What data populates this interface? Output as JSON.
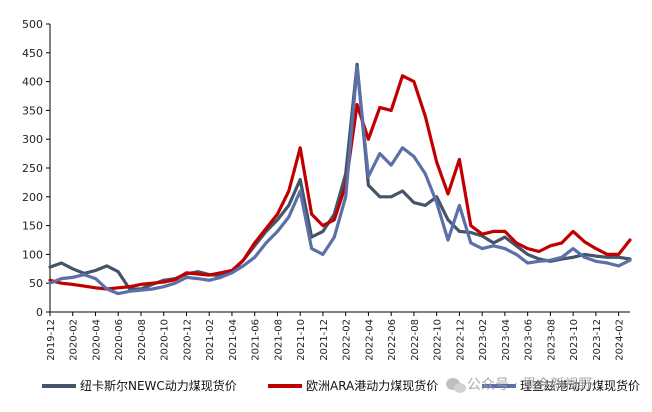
{
  "chart_data": {
    "type": "line",
    "title": "",
    "xlabel": "",
    "ylabel": "",
    "ylim": [
      0,
      500
    ],
    "yticks": [
      "0",
      "50",
      "100",
      "150",
      "200",
      "250",
      "300",
      "350",
      "400",
      "450",
      "500"
    ],
    "x_start": "2019-12",
    "x_end": "2024-03",
    "x_ticks": [
      "2019-12",
      "2020-02",
      "2020-04",
      "2020-06",
      "2020-08",
      "2020-10",
      "2020-12",
      "2021-02",
      "2021-04",
      "2021-06",
      "2021-08",
      "2021-10",
      "2021-12",
      "2022-02",
      "2022-04",
      "2022-06",
      "2022-08",
      "2022-10",
      "2022-12",
      "2023-02",
      "2023-04",
      "2023-06",
      "2023-08",
      "2023-10",
      "2023-12",
      "2024-02"
    ],
    "legend_position": "bottom",
    "series": [
      {
        "name": "纽卡斯尔NEWC动力煤现货价",
        "color": "#44546a",
        "points": [
          [
            "2019-12",
            78
          ],
          [
            "2020-01",
            85
          ],
          [
            "2020-02",
            75
          ],
          [
            "2020-03",
            67
          ],
          [
            "2020-04",
            72
          ],
          [
            "2020-05",
            80
          ],
          [
            "2020-06",
            70
          ],
          [
            "2020-07",
            40
          ],
          [
            "2020-08",
            40
          ],
          [
            "2020-09",
            48
          ],
          [
            "2020-10",
            55
          ],
          [
            "2020-11",
            58
          ],
          [
            "2020-12",
            66
          ],
          [
            "2021-01",
            70
          ],
          [
            "2021-02",
            65
          ],
          [
            "2021-03",
            63
          ],
          [
            "2021-04",
            70
          ],
          [
            "2021-05",
            90
          ],
          [
            "2021-06",
            115
          ],
          [
            "2021-07",
            140
          ],
          [
            "2021-08",
            160
          ],
          [
            "2021-09",
            185
          ],
          [
            "2021-10",
            230
          ],
          [
            "2021-11",
            130
          ],
          [
            "2021-12",
            140
          ],
          [
            "2022-01",
            170
          ],
          [
            "2022-02",
            240
          ],
          [
            "2022-03",
            430
          ],
          [
            "2022-04",
            220
          ],
          [
            "2022-05",
            200
          ],
          [
            "2022-06",
            200
          ],
          [
            "2022-07",
            210
          ],
          [
            "2022-08",
            190
          ],
          [
            "2022-09",
            185
          ],
          [
            "2022-10",
            200
          ],
          [
            "2022-11",
            160
          ],
          [
            "2022-12",
            140
          ],
          [
            "2023-01",
            138
          ],
          [
            "2023-02",
            132
          ],
          [
            "2023-03",
            120
          ],
          [
            "2023-04",
            130
          ],
          [
            "2023-05",
            115
          ],
          [
            "2023-06",
            100
          ],
          [
            "2023-07",
            92
          ],
          [
            "2023-08",
            88
          ],
          [
            "2023-09",
            92
          ],
          [
            "2023-10",
            95
          ],
          [
            "2023-11",
            100
          ],
          [
            "2023-12",
            97
          ],
          [
            "2024-01",
            95
          ],
          [
            "2024-02",
            95
          ],
          [
            "2024-03",
            92
          ]
        ]
      },
      {
        "name": "欧洲ARA港动力煤现货价",
        "color": "#c00000",
        "points": [
          [
            "2019-12",
            55
          ],
          [
            "2020-01",
            50
          ],
          [
            "2020-02",
            48
          ],
          [
            "2020-03",
            45
          ],
          [
            "2020-04",
            42
          ],
          [
            "2020-05",
            40
          ],
          [
            "2020-06",
            42
          ],
          [
            "2020-07",
            44
          ],
          [
            "2020-08",
            48
          ],
          [
            "2020-09",
            50
          ],
          [
            "2020-10",
            52
          ],
          [
            "2020-11",
            56
          ],
          [
            "2020-12",
            68
          ],
          [
            "2021-01",
            66
          ],
          [
            "2021-02",
            64
          ],
          [
            "2021-03",
            68
          ],
          [
            "2021-04",
            72
          ],
          [
            "2021-05",
            90
          ],
          [
            "2021-06",
            120
          ],
          [
            "2021-07",
            145
          ],
          [
            "2021-08",
            170
          ],
          [
            "2021-09",
            210
          ],
          [
            "2021-10",
            285
          ],
          [
            "2021-11",
            170
          ],
          [
            "2021-12",
            150
          ],
          [
            "2022-01",
            160
          ],
          [
            "2022-02",
            220
          ],
          [
            "2022-03",
            360
          ],
          [
            "2022-04",
            300
          ],
          [
            "2022-05",
            355
          ],
          [
            "2022-06",
            350
          ],
          [
            "2022-07",
            410
          ],
          [
            "2022-08",
            400
          ],
          [
            "2022-09",
            340
          ],
          [
            "2022-10",
            260
          ],
          [
            "2022-11",
            205
          ],
          [
            "2022-12",
            265
          ],
          [
            "2023-01",
            150
          ],
          [
            "2023-02",
            135
          ],
          [
            "2023-03",
            140
          ],
          [
            "2023-04",
            140
          ],
          [
            "2023-05",
            120
          ],
          [
            "2023-06",
            110
          ],
          [
            "2023-07",
            105
          ],
          [
            "2023-08",
            115
          ],
          [
            "2023-09",
            120
          ],
          [
            "2023-10",
            140
          ],
          [
            "2023-11",
            122
          ],
          [
            "2023-12",
            110
          ],
          [
            "2024-01",
            100
          ],
          [
            "2024-02",
            100
          ],
          [
            "2024-03",
            125
          ]
        ]
      },
      {
        "name": "理查兹港动力煤现货价",
        "color": "#5b6fa8",
        "points": [
          [
            "2019-12",
            50
          ],
          [
            "2020-01",
            58
          ],
          [
            "2020-02",
            60
          ],
          [
            "2020-03",
            65
          ],
          [
            "2020-04",
            58
          ],
          [
            "2020-05",
            40
          ],
          [
            "2020-06",
            32
          ],
          [
            "2020-07",
            36
          ],
          [
            "2020-08",
            38
          ],
          [
            "2020-09",
            40
          ],
          [
            "2020-10",
            44
          ],
          [
            "2020-11",
            50
          ],
          [
            "2020-12",
            60
          ],
          [
            "2021-01",
            58
          ],
          [
            "2021-02",
            55
          ],
          [
            "2021-03",
            60
          ],
          [
            "2021-04",
            68
          ],
          [
            "2021-05",
            80
          ],
          [
            "2021-06",
            95
          ],
          [
            "2021-07",
            120
          ],
          [
            "2021-08",
            140
          ],
          [
            "2021-09",
            165
          ],
          [
            "2021-10",
            210
          ],
          [
            "2021-11",
            110
          ],
          [
            "2021-12",
            100
          ],
          [
            "2022-01",
            130
          ],
          [
            "2022-02",
            200
          ],
          [
            "2022-03",
            425
          ],
          [
            "2022-04",
            235
          ],
          [
            "2022-05",
            275
          ],
          [
            "2022-06",
            255
          ],
          [
            "2022-07",
            285
          ],
          [
            "2022-08",
            270
          ],
          [
            "2022-09",
            240
          ],
          [
            "2022-10",
            190
          ],
          [
            "2022-11",
            125
          ],
          [
            "2022-12",
            185
          ],
          [
            "2023-01",
            120
          ],
          [
            "2023-02",
            110
          ],
          [
            "2023-03",
            115
          ],
          [
            "2023-04",
            110
          ],
          [
            "2023-05",
            100
          ],
          [
            "2023-06",
            85
          ],
          [
            "2023-07",
            88
          ],
          [
            "2023-08",
            90
          ],
          [
            "2023-09",
            95
          ],
          [
            "2023-10",
            110
          ],
          [
            "2023-11",
            95
          ],
          [
            "2023-12",
            88
          ],
          [
            "2024-01",
            85
          ],
          [
            "2024-02",
            80
          ],
          [
            "2024-03",
            90
          ]
        ]
      }
    ]
  },
  "watermark": {
    "text": "公众号 · 果今新视野",
    "icon": "wechat-icon"
  }
}
